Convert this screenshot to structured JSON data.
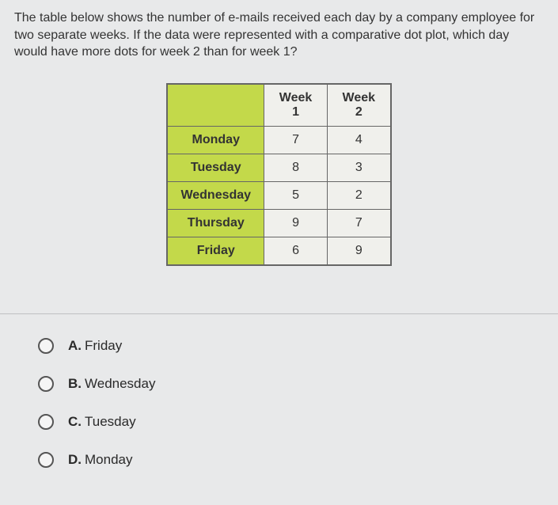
{
  "question": "The table below shows the number of e-mails received each day by a company employee for two separate weeks. If the data were represented with a comparative dot plot, which day would have more dots for week 2 than for week 1?",
  "table": {
    "header_empty": "",
    "col1": "Week 1",
    "col2": "Week 2",
    "header_bg": "#c3d94a",
    "day_bg": "#c3d94a",
    "val_bg": "#f0f0ec",
    "border_color": "#666666",
    "rows": [
      {
        "day": "Monday",
        "w1": "7",
        "w2": "4"
      },
      {
        "day": "Tuesday",
        "w1": "8",
        "w2": "3"
      },
      {
        "day": "Wednesday",
        "w1": "5",
        "w2": "2"
      },
      {
        "day": "Thursday",
        "w1": "9",
        "w2": "7"
      },
      {
        "day": "Friday",
        "w1": "6",
        "w2": "9"
      }
    ]
  },
  "answers": {
    "a": {
      "letter": "A.",
      "text": "Friday"
    },
    "b": {
      "letter": "B.",
      "text": "Wednesday"
    },
    "c": {
      "letter": "C.",
      "text": "Tuesday"
    },
    "d": {
      "letter": "D.",
      "text": "Monday"
    }
  },
  "colors": {
    "page_bg": "#e8e9ea",
    "text": "#2a2a2a"
  }
}
